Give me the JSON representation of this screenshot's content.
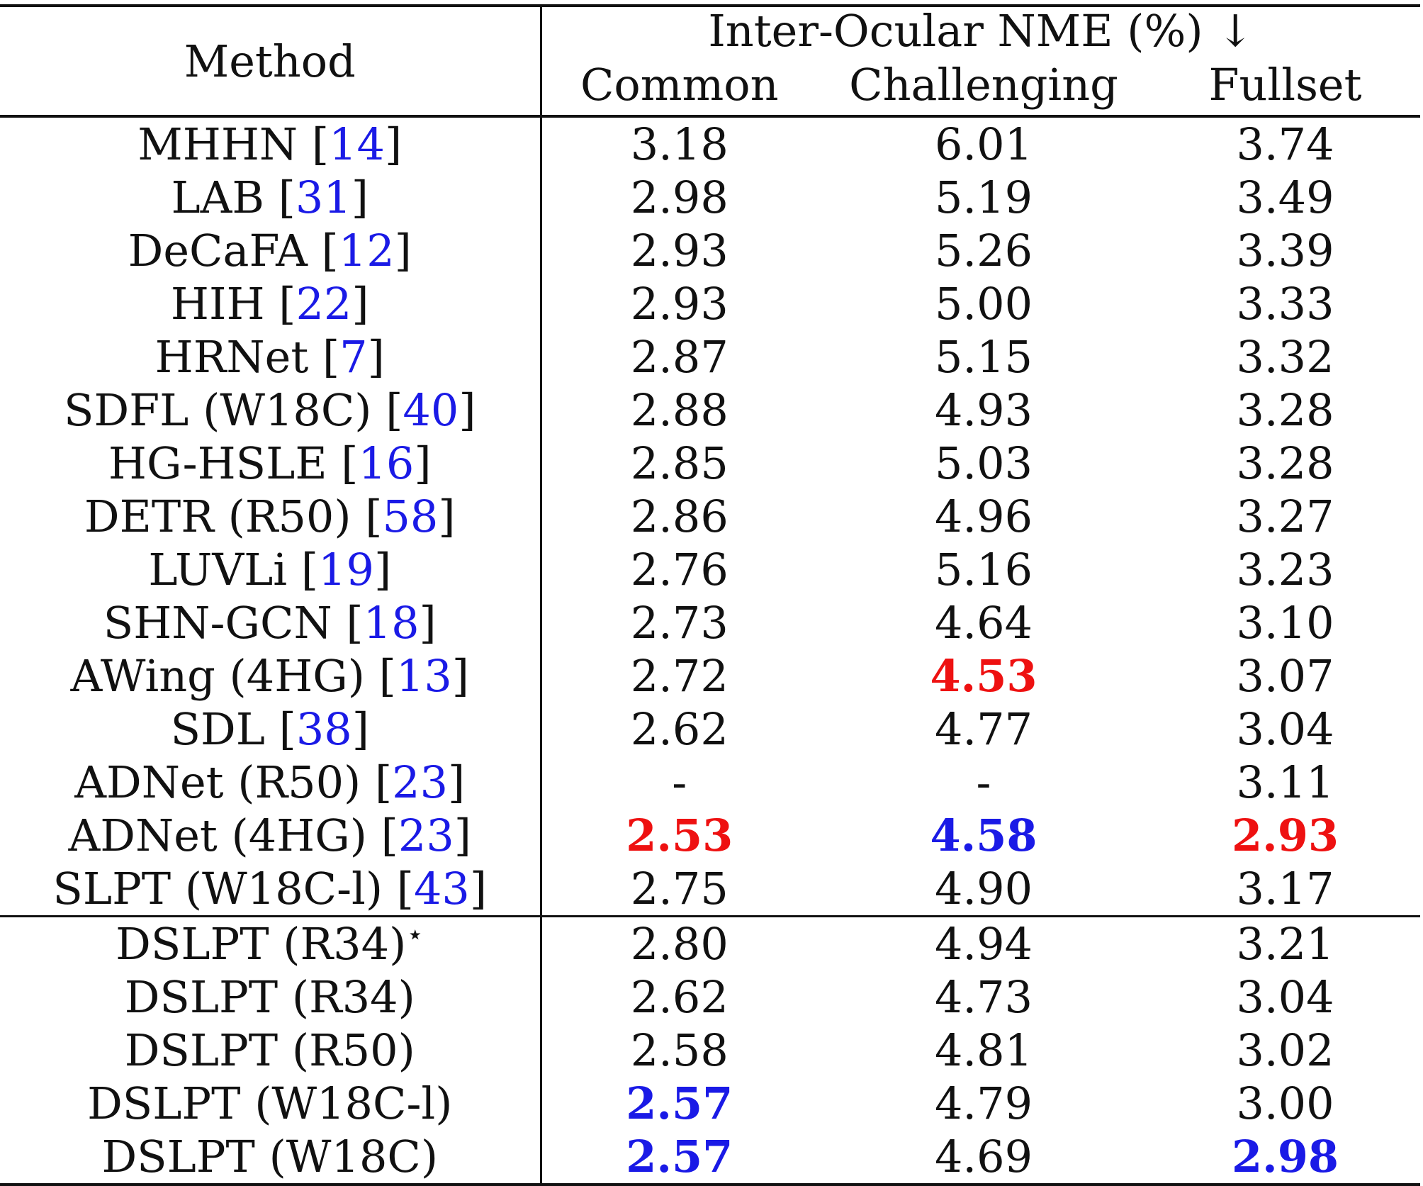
{
  "table": {
    "method_header": "Method",
    "metric_header": "Inter-Ocular NME (%) ↓",
    "columns": [
      "Common",
      "Challenging",
      "Fullset"
    ],
    "group_a": [
      {
        "name": "MHHN [",
        "cite": "14",
        "close": "]",
        "common": "3.18",
        "challenging": "6.01",
        "fullset": "3.74"
      },
      {
        "name": "LAB [",
        "cite": "31",
        "close": "]",
        "common": "2.98",
        "challenging": "5.19",
        "fullset": "3.49"
      },
      {
        "name": "DeCaFA [",
        "cite": "12",
        "close": "]",
        "common": "2.93",
        "challenging": "5.26",
        "fullset": "3.39"
      },
      {
        "name": "HIH [",
        "cite": "22",
        "close": "]",
        "common": "2.93",
        "challenging": "5.00",
        "fullset": "3.33"
      },
      {
        "name": "HRNet [",
        "cite": "7",
        "close": "]",
        "common": "2.87",
        "challenging": "5.15",
        "fullset": "3.32"
      },
      {
        "name": "SDFL (W18C) [",
        "cite": "40",
        "close": "]",
        "common": "2.88",
        "challenging": "4.93",
        "fullset": "3.28"
      },
      {
        "name": "HG-HSLE [",
        "cite": "16",
        "close": "]",
        "common": "2.85",
        "challenging": "5.03",
        "fullset": "3.28"
      },
      {
        "name": "DETR (R50) [",
        "cite": "58",
        "close": "]",
        "common": "2.86",
        "challenging": "4.96",
        "fullset": "3.27"
      },
      {
        "name": "LUVLi [",
        "cite": "19",
        "close": "]",
        "common": "2.76",
        "challenging": "5.16",
        "fullset": "3.23"
      },
      {
        "name": "SHN-GCN [",
        "cite": "18",
        "close": "]",
        "common": "2.73",
        "challenging": "4.64",
        "fullset": "3.10"
      },
      {
        "name": "AWing (4HG) [",
        "cite": "13",
        "close": "]",
        "common": "2.72",
        "challenging": "4.53",
        "fullset": "3.07"
      },
      {
        "name": "SDL [",
        "cite": "38",
        "close": "]",
        "common": "2.62",
        "challenging": "4.77",
        "fullset": "3.04"
      },
      {
        "name": "ADNet (R50) [",
        "cite": "23",
        "close": "]",
        "common": "-",
        "challenging": "-",
        "fullset": "3.11"
      },
      {
        "name": "ADNet (4HG) [",
        "cite": "23",
        "close": "]",
        "common": "2.53",
        "challenging": "4.58",
        "fullset": "2.93"
      },
      {
        "name": "SLPT (W18C-l) [",
        "cite": "43",
        "close": "]",
        "common": "2.75",
        "challenging": "4.90",
        "fullset": "3.17"
      }
    ],
    "group_b": [
      {
        "name": "DSLPT (R34)",
        "star": "⋆",
        "common": "2.80",
        "challenging": "4.94",
        "fullset": "3.21"
      },
      {
        "name": "DSLPT (R34)",
        "common": "2.62",
        "challenging": "4.73",
        "fullset": "3.04"
      },
      {
        "name": "DSLPT (R50)",
        "common": "2.58",
        "challenging": "4.81",
        "fullset": "3.02"
      },
      {
        "name": "DSLPT (W18C-l)",
        "common": "2.57",
        "challenging": "4.79",
        "fullset": "3.00"
      },
      {
        "name": "DSLPT (W18C)",
        "common": "2.57",
        "challenging": "4.69",
        "fullset": "2.98"
      }
    ],
    "colors": {
      "best": "#ee1111",
      "second": "#1a1ae6",
      "citation": "#1a1ae6"
    }
  }
}
